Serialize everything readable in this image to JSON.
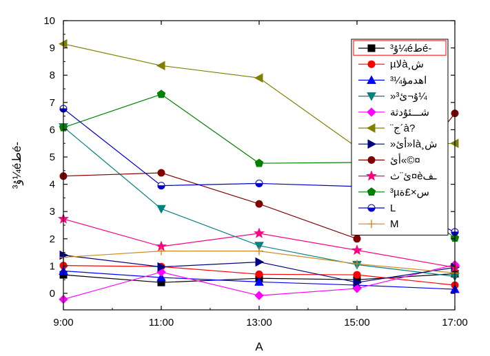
{
  "chart_data": {
    "type": "line",
    "xlabel": "A",
    "ylabel": "ۇ³¼éطé-",
    "x": [
      "9:00",
      "11:00",
      "13:00",
      "15:00",
      "17:00"
    ],
    "ylim": [
      -0.2,
      10
    ],
    "yticks": [
      0,
      1,
      2,
      3,
      4,
      5,
      6,
      7,
      8,
      9,
      10
    ],
    "grid": false,
    "legend_position": "top-right",
    "series": [
      {
        "name": "ۇ³¼éطé-",
        "color": "#000000",
        "marker": "square",
        "values": [
          0.68,
          0.4,
          0.55,
          0.5,
          0.72
        ]
      },
      {
        "name": "µلاà¸ش",
        "color": "#ff0000",
        "marker": "circle",
        "values": [
          1.02,
          0.98,
          0.7,
          0.68,
          0.3
        ]
      },
      {
        "name": "³¼اهدمؤ",
        "color": "#0000ff",
        "marker": "triangle-up",
        "values": [
          0.82,
          0.58,
          0.42,
          0.3,
          0.15
        ]
      },
      {
        "name": "»ۇ¬ئ³¼",
        "color": "#008080",
        "marker": "triangle-down",
        "values": [
          6.1,
          3.1,
          1.75,
          1.05,
          0.62
        ]
      },
      {
        "name": "شـــئۇدثة",
        "color": "#ff00ff",
        "marker": "diamond",
        "values": [
          -0.22,
          0.78,
          -0.08,
          0.18,
          1.05
        ]
      },
      {
        "name": "¨ج´à?",
        "color": "#808000",
        "marker": "triangle-left",
        "values": [
          9.15,
          8.35,
          7.9,
          5.35,
          5.5
        ]
      },
      {
        "name": "»ا«أئà¸ش",
        "color": "#000080",
        "marker": "triangle-right",
        "values": [
          1.4,
          0.97,
          1.15,
          0.4,
          0.95
        ]
      },
      {
        "name": "أئ«©¤",
        "color": "#800000",
        "marker": "circle",
        "values": [
          4.3,
          4.42,
          3.28,
          2.0,
          6.6
        ]
      },
      {
        "name": "ئ¨ث¤èـف",
        "color": "#ff0080",
        "marker": "star",
        "values": [
          2.73,
          1.72,
          2.2,
          1.58,
          0.95
        ]
      },
      {
        "name": "³µس×£ة",
        "color": "#008000",
        "marker": "pentagon",
        "values": [
          6.08,
          7.3,
          4.77,
          4.8,
          2.03
        ]
      },
      {
        "name": "L",
        "color": "#0000cc",
        "marker": "half-circle",
        "values": [
          6.77,
          3.95,
          4.03,
          3.92,
          2.25
        ]
      },
      {
        "name": "M",
        "color": "#d08a20",
        "marker": "plus",
        "values": [
          1.32,
          1.55,
          1.55,
          1.08,
          0.75
        ]
      }
    ]
  }
}
